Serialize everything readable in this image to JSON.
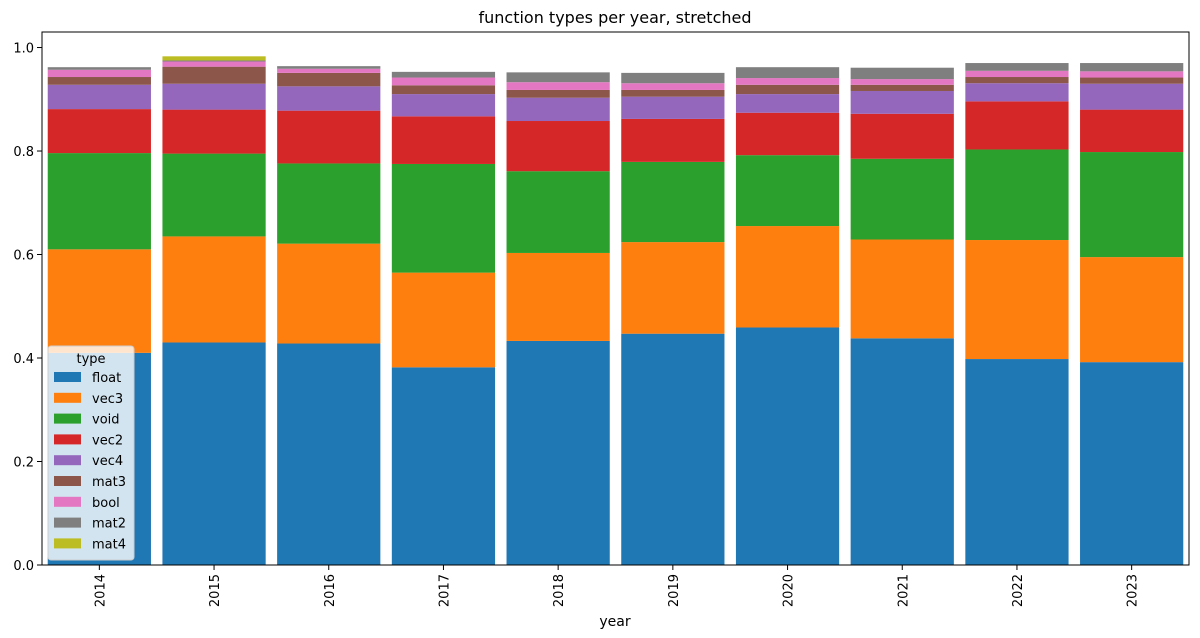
{
  "chart_data": {
    "type": "bar",
    "stacked": true,
    "title": "function types per year, stretched",
    "xlabel": "year",
    "ylabel": "",
    "ylim": [
      0,
      1.03
    ],
    "yticks": [
      "0.0",
      "0.2",
      "0.4",
      "0.6",
      "0.8",
      "1.0"
    ],
    "categories": [
      "2014",
      "2015",
      "2016",
      "2017",
      "2018",
      "2019",
      "2020",
      "2021",
      "2022",
      "2023"
    ],
    "legend_title": "type",
    "legend_position": "lower-left",
    "grid": false,
    "series": [
      {
        "name": "float",
        "color": "#1f77b4",
        "values": [
          0.41,
          0.43,
          0.428,
          0.382,
          0.433,
          0.447,
          0.459,
          0.438,
          0.398,
          0.392
        ]
      },
      {
        "name": "vec3",
        "color": "#ff7f0e",
        "values": [
          0.2,
          0.205,
          0.193,
          0.183,
          0.17,
          0.177,
          0.196,
          0.191,
          0.23,
          0.203
        ]
      },
      {
        "name": "void",
        "color": "#2ca02c",
        "values": [
          0.186,
          0.16,
          0.155,
          0.21,
          0.158,
          0.155,
          0.137,
          0.156,
          0.175,
          0.203
        ]
      },
      {
        "name": "vec2",
        "color": "#d62728",
        "values": [
          0.085,
          0.085,
          0.102,
          0.092,
          0.097,
          0.083,
          0.082,
          0.087,
          0.093,
          0.082
        ]
      },
      {
        "name": "vec4",
        "color": "#9467bd",
        "values": [
          0.047,
          0.05,
          0.047,
          0.043,
          0.045,
          0.043,
          0.036,
          0.044,
          0.035,
          0.05
        ]
      },
      {
        "name": "mat3",
        "color": "#8c564b",
        "values": [
          0.015,
          0.033,
          0.026,
          0.017,
          0.015,
          0.013,
          0.018,
          0.012,
          0.012,
          0.012
        ]
      },
      {
        "name": "bool",
        "color": "#e377c2",
        "values": [
          0.014,
          0.01,
          0.008,
          0.015,
          0.015,
          0.013,
          0.013,
          0.011,
          0.012,
          0.012
        ]
      },
      {
        "name": "mat2",
        "color": "#7f7f7f",
        "values": [
          0.005,
          0.002,
          0.005,
          0.011,
          0.019,
          0.02,
          0.021,
          0.022,
          0.015,
          0.016
        ]
      },
      {
        "name": "mat4",
        "color": "#bcbd22",
        "values": [
          0,
          0.008,
          0,
          0,
          0,
          0,
          0,
          0,
          0,
          0
        ]
      }
    ]
  }
}
